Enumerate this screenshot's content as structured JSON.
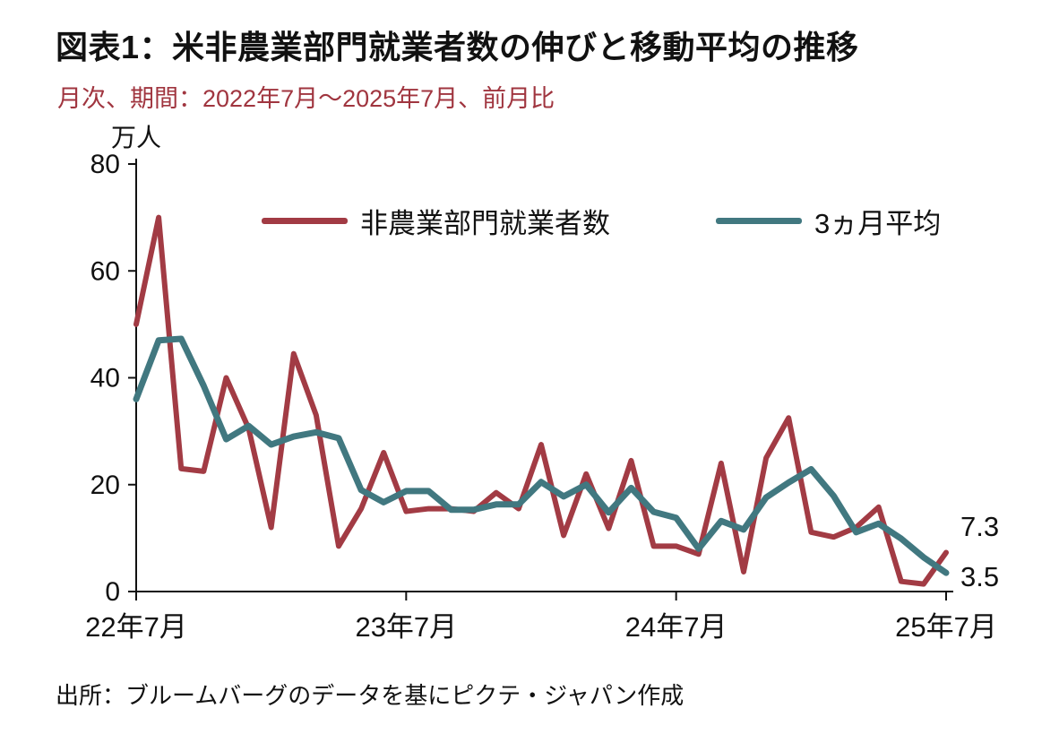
{
  "chart": {
    "title": "図表1：米非農業部門就業者数の伸びと移動平均の推移",
    "subtitle": "月次、期間：2022年7月～2025年7月、前月比",
    "unit_label": "万人",
    "source": "出所：ブルームバーグのデータを基にピクテ・ジャパン作成",
    "end_labels": {
      "payrolls": "7.3",
      "average": "3.5"
    },
    "colors": {
      "payrolls": "#A23B44",
      "average": "#417880",
      "axis": "#111111"
    }
  },
  "chart_data": {
    "type": "line",
    "title": "図表1：米非農業部門就業者数の伸びと移動平均の推移",
    "subtitle": "月次、期間：2022年7月～2025年7月、前月比",
    "xlabel": "",
    "ylabel": "万人",
    "ylim": [
      0,
      80
    ],
    "y_ticks": [
      0,
      20,
      40,
      60,
      80
    ],
    "grid": false,
    "legend_position": "top-inside",
    "x": [
      "2022/07",
      "2022/08",
      "2022/09",
      "2022/10",
      "2022/11",
      "2022/12",
      "2023/01",
      "2023/02",
      "2023/03",
      "2023/04",
      "2023/05",
      "2023/06",
      "2023/07",
      "2023/08",
      "2023/09",
      "2023/10",
      "2023/11",
      "2023/12",
      "2024/01",
      "2024/02",
      "2024/03",
      "2024/04",
      "2024/05",
      "2024/06",
      "2024/07",
      "2024/08",
      "2024/09",
      "2024/10",
      "2024/11",
      "2024/12",
      "2025/01",
      "2025/02",
      "2025/03",
      "2025/04",
      "2025/05",
      "2025/06",
      "2025/07"
    ],
    "x_tick_labels": [
      "22年7月",
      "23年7月",
      "24年7月",
      "25年7月"
    ],
    "x_tick_indices": [
      0,
      12,
      24,
      36
    ],
    "series": [
      {
        "name": "非農業部門就業者数",
        "color": "#A23B44",
        "width": 6,
        "values": [
          50,
          70,
          23,
          22.5,
          40,
          30.5,
          12,
          44.5,
          33,
          8.5,
          15.5,
          26,
          15,
          15.5,
          15.5,
          15,
          18.5,
          15.5,
          27.5,
          10.5,
          22,
          11.8,
          24.5,
          8.5,
          8.5,
          7,
          24,
          3.7,
          25,
          32.5,
          11.1,
          10.2,
          12,
          15.8,
          1.9,
          1.4,
          7.3
        ]
      },
      {
        "name": "3ヵ月平均",
        "color": "#417880",
        "width": 7,
        "values": [
          36,
          47,
          47.3,
          38.5,
          28.5,
          31,
          27.5,
          29,
          29.8,
          28.7,
          19,
          16.7,
          18.8,
          18.8,
          15.3,
          15.3,
          16.3,
          16.3,
          20.5,
          17.8,
          20,
          14.8,
          19.4,
          14.9,
          13.8,
          8,
          13.2,
          11.6,
          17.6,
          20.4,
          22.9,
          17.9,
          11.1,
          12.7,
          9.9,
          6.4,
          3.5
        ]
      }
    ],
    "end_value_labels": [
      7.3,
      3.5
    ]
  }
}
